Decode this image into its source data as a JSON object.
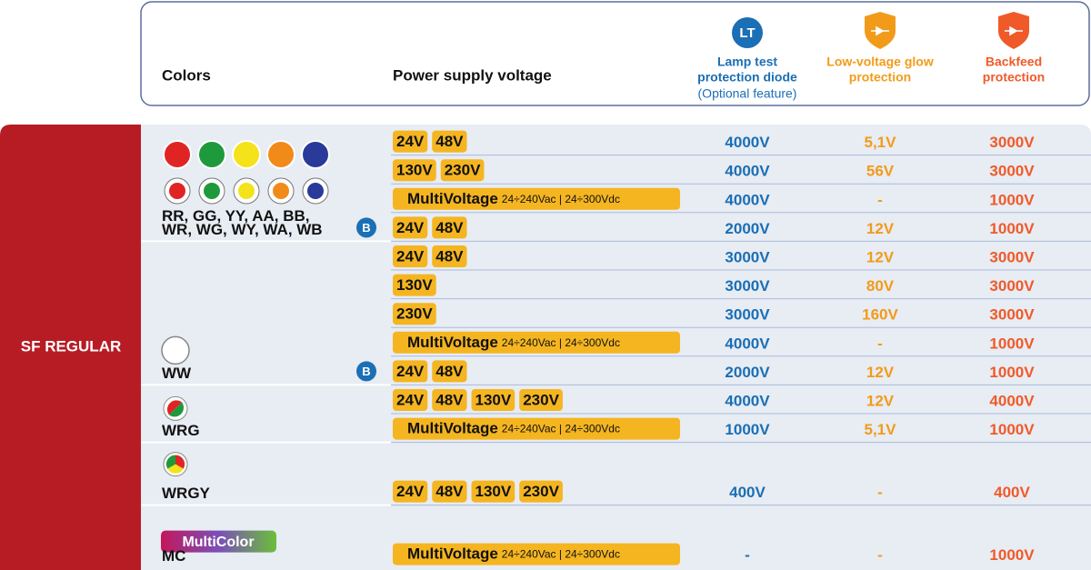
{
  "header": {
    "colors": "Colors",
    "supply": "Power supply voltage",
    "lt": {
      "badge": "LT",
      "title": [
        "Lamp test",
        "protection diode"
      ],
      "note": "(Optional feature)"
    },
    "low": [
      "Low-voltage glow",
      "protection"
    ],
    "backfeed": [
      "Backfeed",
      "protection"
    ]
  },
  "section": "SF REGULAR",
  "groups": [
    {
      "codes": [
        "RR, GG, YY, AA, BB,",
        "WR, WG, WY, WA, WB"
      ],
      "rows": [
        {
          "supply": [
            "24V",
            "48V"
          ],
          "lt": "4000V",
          "low": "5,1V",
          "backfeed": "3000V"
        },
        {
          "supply": [
            "130V",
            "230V"
          ],
          "lt": "4000V",
          "low": "56V",
          "backfeed": "3000V"
        },
        {
          "supply": {
            "name": "MultiVoltage",
            "range": "24÷240Vac | 24÷300Vdc"
          },
          "lt": "4000V",
          "low": "-",
          "backfeed": "1000V"
        },
        {
          "badge": "B",
          "supply": [
            "24V",
            "48V"
          ],
          "lt": "2000V",
          "low": "12V",
          "backfeed": "1000V"
        }
      ]
    },
    {
      "codes": [
        "WW"
      ],
      "rows": [
        {
          "supply": [
            "24V",
            "48V"
          ],
          "lt": "3000V",
          "low": "12V",
          "backfeed": "3000V"
        },
        {
          "supply": [
            "130V"
          ],
          "lt": "3000V",
          "low": "80V",
          "backfeed": "3000V"
        },
        {
          "supply": [
            "230V"
          ],
          "lt": "3000V",
          "low": "160V",
          "backfeed": "3000V"
        },
        {
          "supply": {
            "name": "MultiVoltage",
            "range": "24÷240Vac | 24÷300Vdc"
          },
          "lt": "4000V",
          "low": "-",
          "backfeed": "1000V"
        },
        {
          "badge": "B",
          "supply": [
            "24V",
            "48V"
          ],
          "lt": "2000V",
          "low": "12V",
          "backfeed": "1000V"
        }
      ]
    },
    {
      "codes": [
        "WRG"
      ],
      "rows": [
        {
          "supply": [
            "24V",
            "48V",
            "130V",
            "230V"
          ],
          "lt": "4000V",
          "low": "12V",
          "backfeed": "4000V"
        },
        {
          "supply": {
            "name": "MultiVoltage",
            "range": "24÷240Vac | 24÷300Vdc"
          },
          "lt": "1000V",
          "low": "5,1V",
          "backfeed": "1000V"
        }
      ]
    },
    {
      "codes": [
        "WRGY"
      ],
      "rows": [
        {
          "supply": [
            "24V",
            "48V",
            "130V",
            "230V"
          ],
          "lt": "400V",
          "low": "-",
          "backfeed": "400V"
        }
      ]
    },
    {
      "tag": "MultiColor",
      "codes": [
        "MC"
      ],
      "rows": [
        {
          "supply": {
            "name": "MultiVoltage",
            "range": "24÷240Vac | 24÷300Vdc"
          },
          "lt": "-",
          "low": "-",
          "backfeed": "1000V"
        }
      ]
    }
  ]
}
